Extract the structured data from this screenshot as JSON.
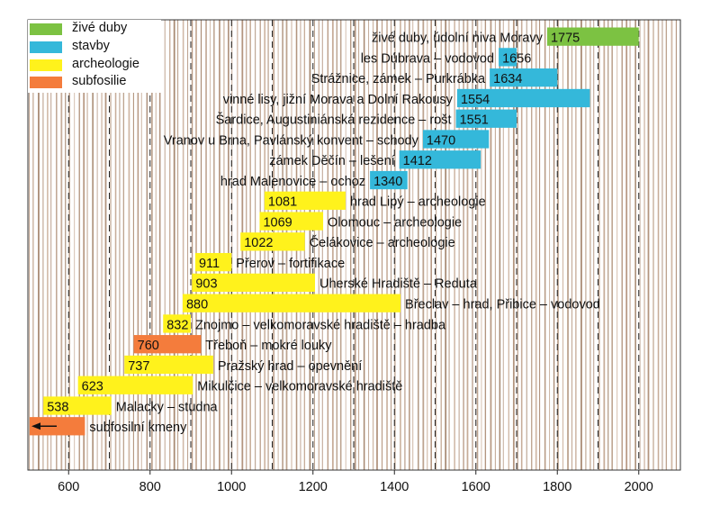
{
  "legend": [
    {
      "label": "živé duby",
      "color": "#7cc242"
    },
    {
      "label": "stavby",
      "color": "#34b8da"
    },
    {
      "label": "archeologie",
      "color": "#fff21c"
    },
    {
      "label": "subfosilie",
      "color": "#f47c3c"
    }
  ],
  "chart_data": {
    "type": "bar",
    "orientation": "horizontal-range",
    "xlim": [
      500,
      2020
    ],
    "x_ticks": [
      600,
      800,
      1000,
      1200,
      1400,
      1600,
      1800,
      2000
    ],
    "background": "vertical brown tree-ring stripes, dashed gridlines every 100 years",
    "bars": [
      {
        "label": "živé duby, údolní niva Moravy",
        "start": 1775,
        "end": 2000,
        "category": "živé duby",
        "label_side": "left"
      },
      {
        "label": "les Dúbrava – vodovod",
        "start": 1656,
        "end": 1700,
        "category": "stavby",
        "label_side": "left"
      },
      {
        "label": "Strážnice, zámek – Purkrábka",
        "start": 1634,
        "end": 1800,
        "category": "stavby",
        "label_side": "left"
      },
      {
        "label": "vinné lisy, jižní Morava a Dolní Rakousy",
        "start": 1554,
        "end": 1880,
        "category": "stavby",
        "label_side": "left"
      },
      {
        "label": "Šardice, Augustiniánská rezidence – rošt",
        "start": 1551,
        "end": 1700,
        "category": "stavby",
        "label_side": "left"
      },
      {
        "label": "Vranov u Brna, Pavlánský konvent – schody",
        "start": 1470,
        "end": 1632,
        "category": "stavby",
        "label_side": "left"
      },
      {
        "label": "zámek Děčín – lešení",
        "start": 1412,
        "end": 1612,
        "category": "stavby",
        "label_side": "left"
      },
      {
        "label": "hrad Malenovice – ochoz",
        "start": 1340,
        "end": 1432,
        "category": "stavby",
        "label_side": "left"
      },
      {
        "label": "hrad Lipý – archeologie",
        "start": 1081,
        "end": 1280,
        "category": "archeologie",
        "label_side": "right"
      },
      {
        "label": "Olomouc – archeologie",
        "start": 1069,
        "end": 1225,
        "category": "archeologie",
        "label_side": "right"
      },
      {
        "label": "Čelákovice – archeologie",
        "start": 1022,
        "end": 1180,
        "category": "archeologie",
        "label_side": "right"
      },
      {
        "label": "Přerov – fortifikace",
        "start": 911,
        "end": 1000,
        "category": "archeologie",
        "label_side": "right"
      },
      {
        "label": "Uherské Hradiště – Reduta",
        "start": 903,
        "end": 1205,
        "category": "archeologie",
        "label_side": "right"
      },
      {
        "label": "Břeclav – hrad, Přibice – vodovod",
        "start": 880,
        "end": 1415,
        "category": "archeologie",
        "label_side": "right"
      },
      {
        "label": "Znojmo – velkomoravské hradiště – hradba",
        "start": 832,
        "end": 900,
        "category": "archeologie",
        "label_side": "right"
      },
      {
        "label": "Třeboň – mokré louky",
        "start": 760,
        "end": 925,
        "category": "subfosilie",
        "label_side": "right"
      },
      {
        "label": "Pražský hrad – opevnění",
        "start": 737,
        "end": 955,
        "category": "archeologie",
        "label_side": "right"
      },
      {
        "label": "Mikulčice – velkomoravské hradiště",
        "start": 623,
        "end": 905,
        "category": "archeologie",
        "label_side": "right"
      },
      {
        "label": "Malacky – studna",
        "start": 538,
        "end": 705,
        "category": "archeologie",
        "label_side": "right"
      },
      {
        "label": "subfosilní kmeny",
        "start": null,
        "end": 640,
        "category": "subfosilie",
        "label_side": "right",
        "arrow": "left"
      }
    ]
  }
}
